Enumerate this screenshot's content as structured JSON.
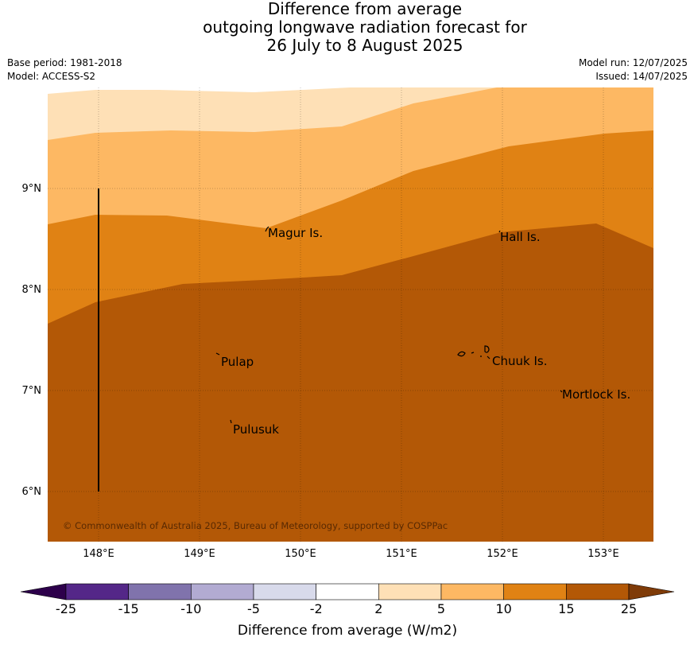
{
  "title": {
    "line1": "Difference from average",
    "line2": "outgoing longwave radiation forecast for",
    "line3": "26 July to 8 August 2025"
  },
  "meta": {
    "base_period": "Base period: 1981-2018",
    "model": "Model: ACCESS-S2",
    "model_run": "Model run: 12/07/2025",
    "issued": "Issued: 14/07/2025"
  },
  "map": {
    "lat_labels": [
      "9°N",
      "8°N",
      "7°N",
      "6°N"
    ],
    "lon_labels": [
      "148°E",
      "149°E",
      "150°E",
      "151°E",
      "152°E",
      "153°E"
    ],
    "places": [
      "Magur Is.",
      "Hall Is.",
      "Pulap",
      "Chuuk Is.",
      "Mortlock Is.",
      "Pulusuk"
    ],
    "copyright": "© Commonwealth of Australia 2025, Bureau of Meteorology, supported by COSPPac"
  },
  "colorbar": {
    "ticks": [
      "-25",
      "-15",
      "-10",
      "-5",
      "-2",
      "2",
      "5",
      "10",
      "15",
      "25"
    ],
    "colors": [
      "#2d004b",
      "#542788",
      "#8073ac",
      "#b2abd2",
      "#d8daeb",
      "#ffffff",
      "#fee0b6",
      "#fdb863",
      "#e08214",
      "#b35806",
      "#7f3b08"
    ],
    "label": "Difference from average (W/m2)"
  }
}
